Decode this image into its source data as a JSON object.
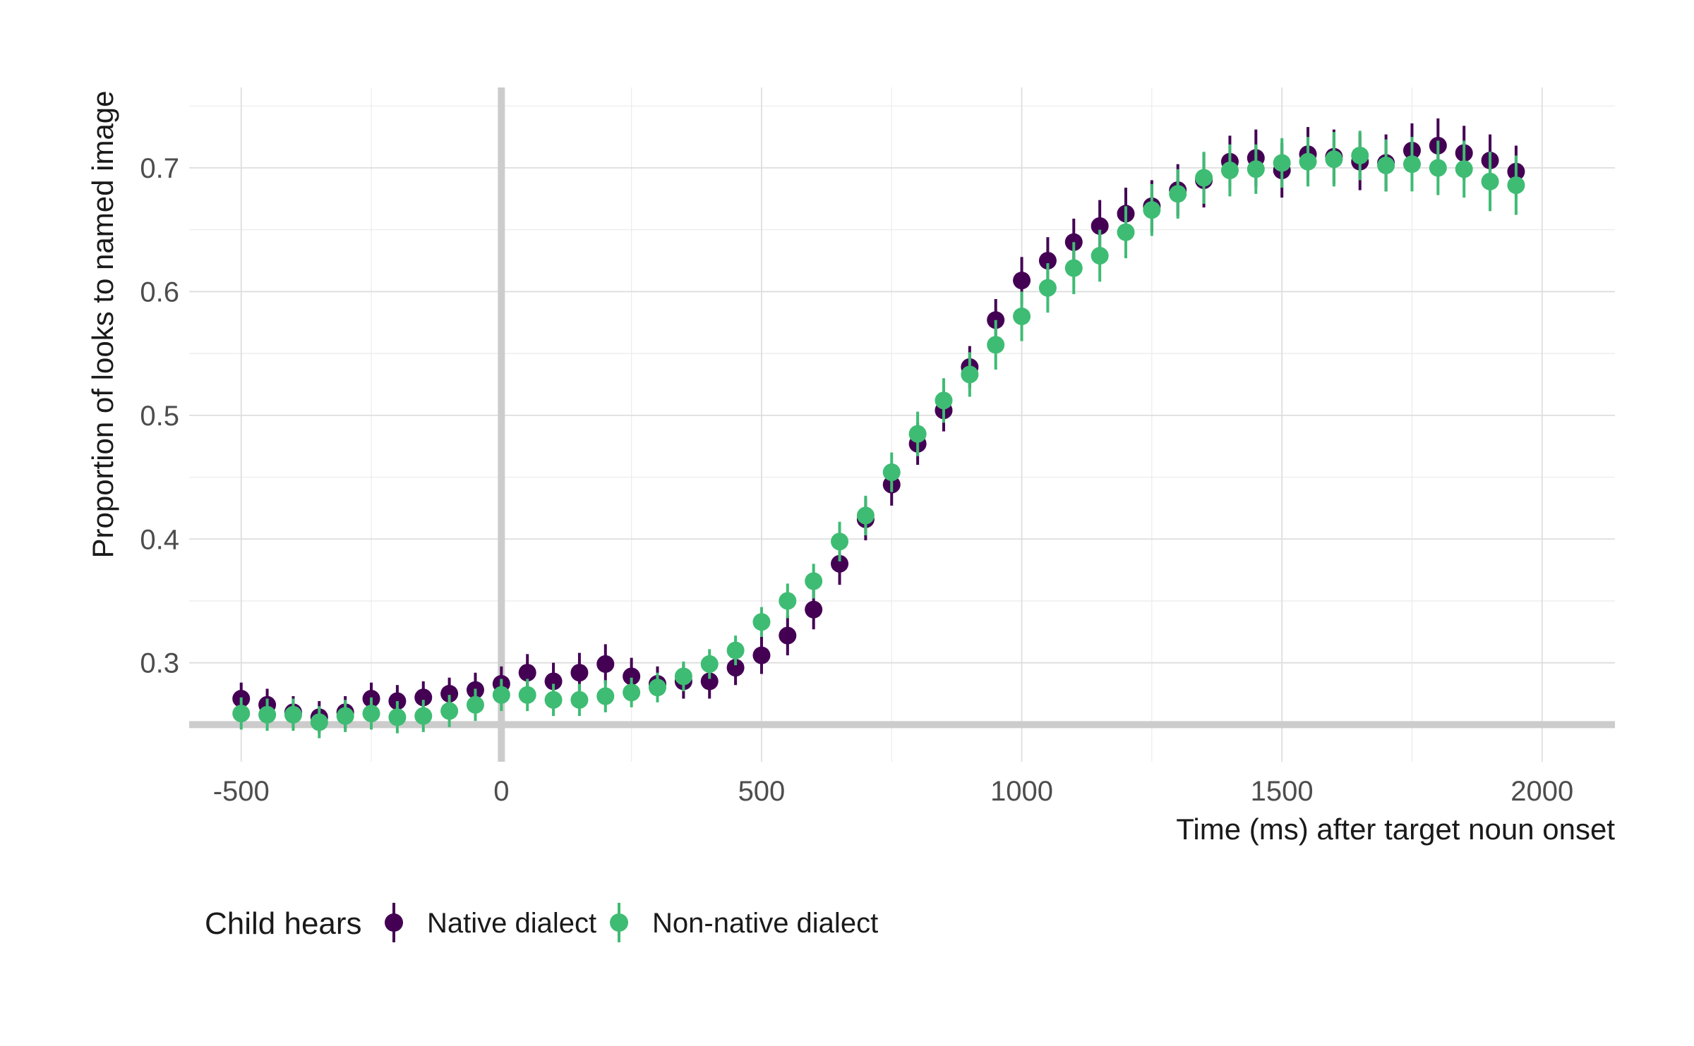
{
  "chart_data": {
    "type": "scatter",
    "xlabel": "Time (ms) after target noun onset",
    "ylabel": "Proportion of looks to named image",
    "xlim": [
      -600,
      2140
    ],
    "ylim": [
      0.22,
      0.765
    ],
    "x_ticks": [
      -500,
      0,
      500,
      1000,
      1500,
      2000
    ],
    "x_tick_labels": [
      "-500",
      "0",
      "500",
      "1000",
      "1500",
      "2000"
    ],
    "y_ticks": [
      0.3,
      0.4,
      0.5,
      0.6,
      0.7
    ],
    "y_tick_labels": [
      "0.3",
      "0.4",
      "0.5",
      "0.6",
      "0.7"
    ],
    "reference_lines": {
      "vertical_x": 0,
      "horizontal_y": 0.25,
      "color": "#cccccc"
    },
    "grid": true,
    "legend": {
      "title": "Child hears",
      "position": "bottom-left"
    },
    "x": [
      -500,
      -450,
      -400,
      -350,
      -300,
      -250,
      -200,
      -150,
      -100,
      -50,
      0,
      50,
      100,
      150,
      200,
      250,
      300,
      350,
      400,
      450,
      500,
      550,
      600,
      650,
      700,
      750,
      800,
      850,
      900,
      950,
      1000,
      1050,
      1100,
      1150,
      1200,
      1250,
      1300,
      1350,
      1400,
      1450,
      1500,
      1550,
      1600,
      1650,
      1700,
      1750,
      1800,
      1850,
      1900,
      1950
    ],
    "series": [
      {
        "name": "Native dialect",
        "color": "#440154",
        "values": [
          0.271,
          0.266,
          0.26,
          0.256,
          0.26,
          0.271,
          0.269,
          0.272,
          0.275,
          0.278,
          0.283,
          0.292,
          0.285,
          0.292,
          0.299,
          0.289,
          0.283,
          0.285,
          0.285,
          0.296,
          0.306,
          0.322,
          0.343,
          0.38,
          0.416,
          0.444,
          0.477,
          0.504,
          0.539,
          0.577,
          0.609,
          0.625,
          0.64,
          0.653,
          0.663,
          0.669,
          0.682,
          0.69,
          0.705,
          0.708,
          0.698,
          0.711,
          0.709,
          0.705,
          0.704,
          0.714,
          0.718,
          0.712,
          0.706,
          0.697
        ],
        "error": [
          0.013,
          0.013,
          0.013,
          0.013,
          0.013,
          0.013,
          0.013,
          0.013,
          0.013,
          0.014,
          0.014,
          0.015,
          0.015,
          0.016,
          0.016,
          0.015,
          0.014,
          0.014,
          0.014,
          0.014,
          0.015,
          0.016,
          0.016,
          0.017,
          0.017,
          0.017,
          0.017,
          0.017,
          0.017,
          0.017,
          0.019,
          0.019,
          0.019,
          0.021,
          0.021,
          0.021,
          0.021,
          0.022,
          0.021,
          0.023,
          0.022,
          0.022,
          0.022,
          0.023,
          0.023,
          0.022,
          0.022,
          0.022,
          0.021,
          0.021
        ]
      },
      {
        "name": "Non-native dialect",
        "color": "#3ebc73",
        "values": [
          0.259,
          0.258,
          0.258,
          0.252,
          0.257,
          0.259,
          0.256,
          0.257,
          0.261,
          0.266,
          0.274,
          0.274,
          0.27,
          0.27,
          0.273,
          0.276,
          0.28,
          0.289,
          0.299,
          0.31,
          0.333,
          0.35,
          0.366,
          0.398,
          0.419,
          0.454,
          0.485,
          0.512,
          0.533,
          0.557,
          0.58,
          0.603,
          0.619,
          0.629,
          0.648,
          0.666,
          0.679,
          0.692,
          0.698,
          0.699,
          0.704,
          0.705,
          0.707,
          0.71,
          0.702,
          0.703,
          0.7,
          0.699,
          0.689,
          0.686
        ],
        "error": [
          0.013,
          0.013,
          0.013,
          0.013,
          0.013,
          0.013,
          0.013,
          0.013,
          0.013,
          0.013,
          0.013,
          0.013,
          0.013,
          0.013,
          0.013,
          0.012,
          0.012,
          0.012,
          0.012,
          0.012,
          0.012,
          0.014,
          0.014,
          0.016,
          0.016,
          0.016,
          0.018,
          0.018,
          0.018,
          0.02,
          0.02,
          0.02,
          0.021,
          0.021,
          0.021,
          0.021,
          0.02,
          0.021,
          0.021,
          0.02,
          0.02,
          0.02,
          0.022,
          0.02,
          0.021,
          0.022,
          0.022,
          0.023,
          0.024,
          0.024
        ]
      }
    ]
  }
}
